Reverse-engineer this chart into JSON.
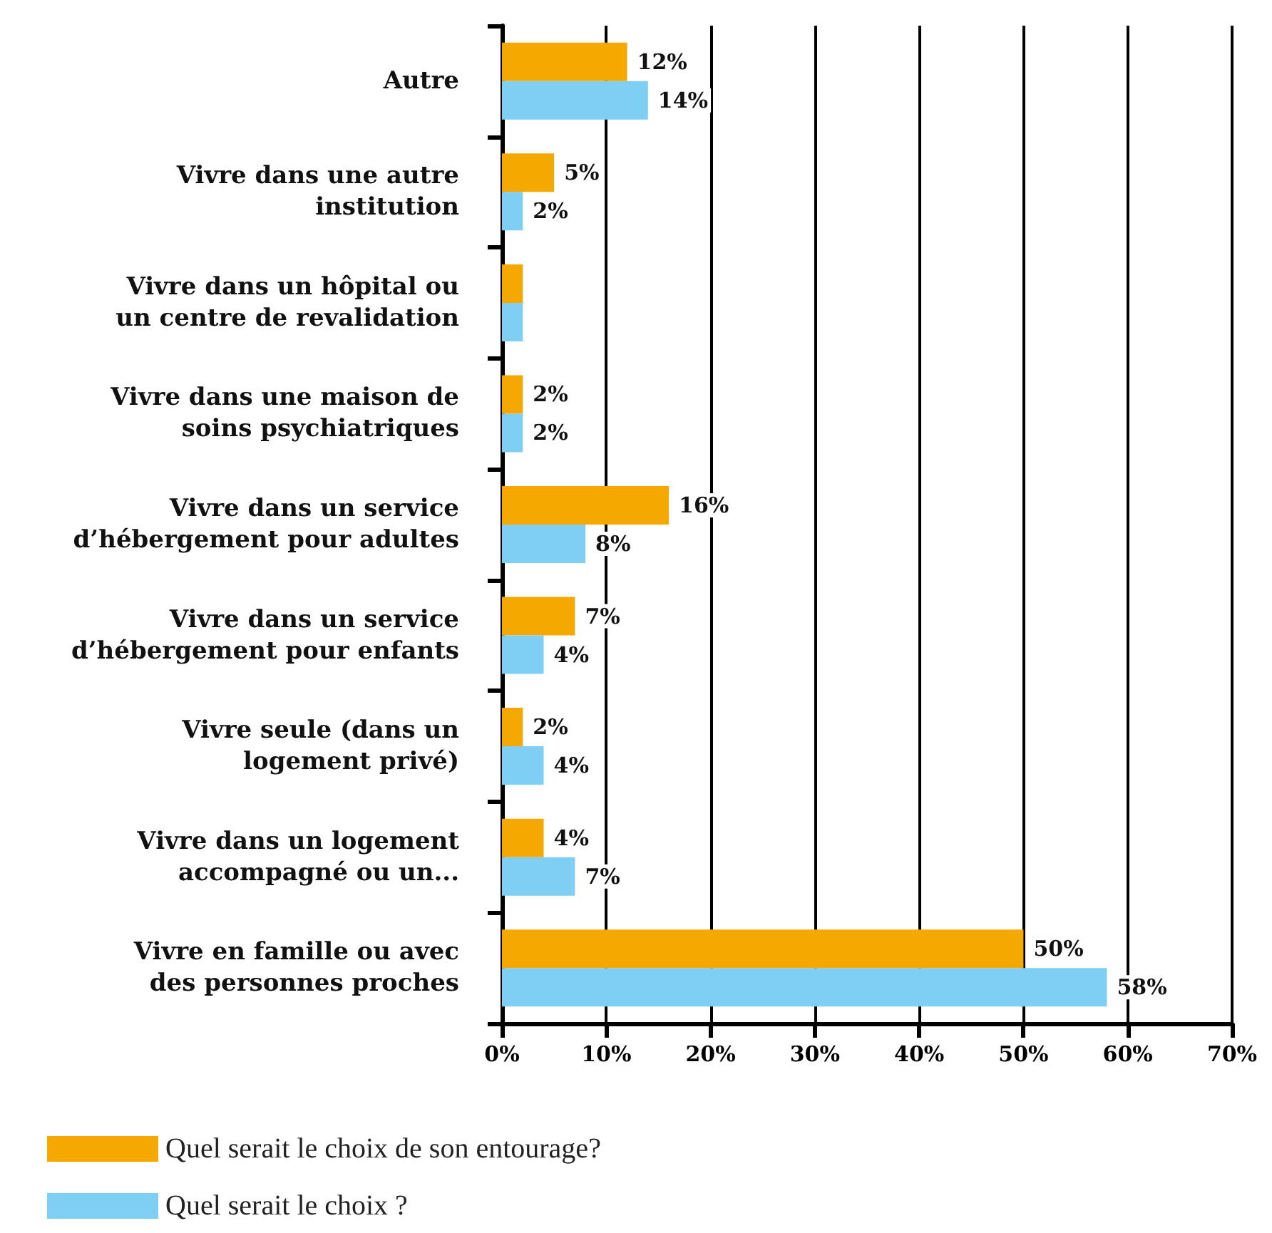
{
  "chart_data": {
    "type": "bar",
    "orientation": "horizontal",
    "categories": [
      "Autre",
      "Vivre dans une autre institution",
      "Vivre dans un hôpital ou un centre de revalidation",
      "Vivre dans une maison de soins psychiatriques",
      "Vivre dans un service d’hébergement pour adultes",
      "Vivre dans un service d’hébergement pour enfants",
      "Vivre seule (dans un logement privé)",
      "Vivre dans un logement accompagné ou un...",
      "Vivre en famille ou avec des personnes proches"
    ],
    "series": [
      {
        "name": "Quel serait le choix de son entourage?",
        "color": "#f5a800",
        "values": [
          12,
          5,
          2,
          2,
          16,
          7,
          2,
          4,
          50
        ],
        "value_labels": [
          "12%",
          "5%",
          null,
          "2%",
          "16%",
          "7%",
          "2%",
          "4%",
          "50%"
        ]
      },
      {
        "name": "Quel serait le choix ?",
        "color": "#7fcff5",
        "values": [
          14,
          2,
          2,
          2,
          8,
          4,
          4,
          7,
          58
        ],
        "value_labels": [
          "14%",
          "2%",
          null,
          "2%",
          "8%",
          "4%",
          "4%",
          "7%",
          "58%"
        ]
      }
    ],
    "xlim": [
      0,
      70
    ],
    "xticks": [
      {
        "value": 0,
        "label": "0%"
      },
      {
        "value": 10,
        "label": "10%"
      },
      {
        "value": 20,
        "label": "20%"
      },
      {
        "value": 30,
        "label": "30%"
      },
      {
        "value": 40,
        "label": "40%"
      },
      {
        "value": 50,
        "label": "50%"
      },
      {
        "value": 60,
        "label": "60%"
      },
      {
        "value": 70,
        "label": "70%"
      }
    ],
    "grid": "x",
    "legend": "bottom left"
  }
}
